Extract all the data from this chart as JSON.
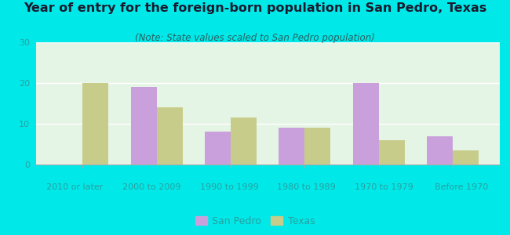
{
  "title": "Year of entry for the foreign-born population in San Pedro, Texas",
  "subtitle": "(Note: State values scaled to San Pedro population)",
  "categories": [
    "2010 or later",
    "2000 to 2009",
    "1990 to 1999",
    "1980 to 1989",
    "1970 to 1979",
    "Before 1970"
  ],
  "san_pedro": [
    0,
    19,
    8,
    9,
    20,
    7
  ],
  "texas": [
    20,
    14,
    11.5,
    9,
    6,
    3.5
  ],
  "san_pedro_color": "#c9a0dc",
  "texas_color": "#c8cc8a",
  "background_outer": "#00e8e8",
  "background_inner": "#e5f5e5",
  "ylim": [
    0,
    30
  ],
  "yticks": [
    0,
    10,
    20,
    30
  ],
  "legend_san_pedro": "San Pedro",
  "legend_texas": "Texas",
  "bar_width": 0.35,
  "title_fontsize": 11.5,
  "subtitle_fontsize": 8.5,
  "tick_label_fontsize": 8.0,
  "tick_label_color": "#2aa0a0",
  "title_color": "#1a1a2e",
  "subtitle_color": "#2a6060"
}
